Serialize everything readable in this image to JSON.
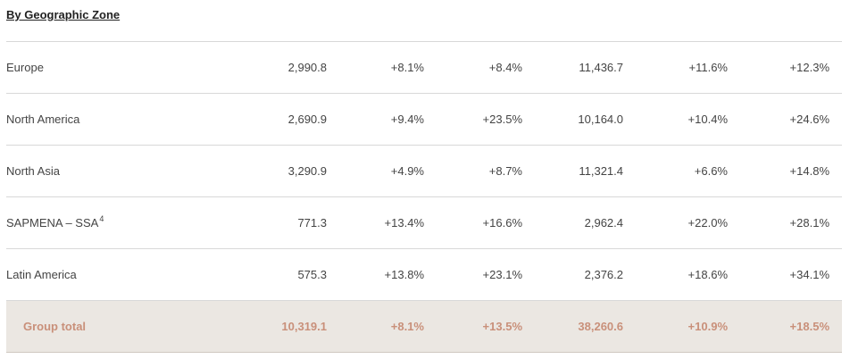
{
  "heading": "By Geographic Zone",
  "rows": [
    {
      "label": "Europe",
      "sup": "",
      "values": [
        "2,990.8",
        "+8.1%",
        "+8.4%",
        "11,436.7",
        "+11.6%",
        "+12.3%"
      ]
    },
    {
      "label": "North America",
      "sup": "",
      "values": [
        "2,690.9",
        "+9.4%",
        "+23.5%",
        "10,164.0",
        "+10.4%",
        "+24.6%"
      ]
    },
    {
      "label": "North Asia",
      "sup": "",
      "values": [
        "3,290.9",
        "+4.9%",
        "+8.7%",
        "11,321.4",
        "+6.6%",
        "+14.8%"
      ]
    },
    {
      "label": "SAPMENA – SSA",
      "sup": "4",
      "values": [
        "771.3",
        "+13.4%",
        "+16.6%",
        "2,962.4",
        "+22.0%",
        "+28.1%"
      ]
    },
    {
      "label": "Latin America",
      "sup": "",
      "values": [
        "575.3",
        "+13.8%",
        "+23.1%",
        "2,376.2",
        "+18.6%",
        "+34.1%"
      ]
    }
  ],
  "total": {
    "label": "Group total",
    "values": [
      "10,319.1",
      "+8.1%",
      "+13.5%",
      "38,260.6",
      "+10.9%",
      "+18.5%"
    ]
  },
  "colors": {
    "total_text": "#c9907a",
    "total_bg": "#ebe7e2",
    "rule": "#d8d8d8"
  }
}
